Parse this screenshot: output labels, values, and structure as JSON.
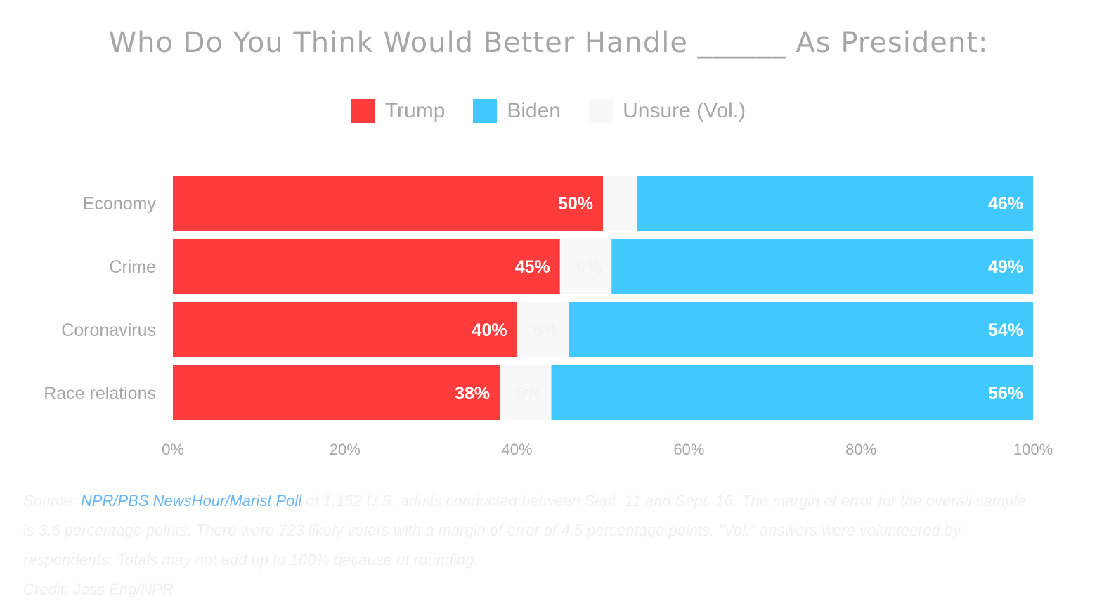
{
  "chart_data": {
    "type": "bar",
    "orientation": "horizontal",
    "stacked": true,
    "title": "Who Do You Think Would Better Handle ______ As President:",
    "categories": [
      "Economy",
      "Crime",
      "Coronavirus",
      "Race relations"
    ],
    "series": [
      {
        "name": "Trump",
        "color": "#ff3b3c",
        "values": [
          50,
          45,
          40,
          38
        ],
        "labels": [
          "50%",
          "45%",
          "40%",
          "38%"
        ]
      },
      {
        "name": "Unsure (Vol.)",
        "color": "#f8f8f8",
        "values": [
          4,
          6,
          6,
          6
        ],
        "labels": [
          "",
          "6%",
          "6%",
          "6%"
        ]
      },
      {
        "name": "Biden",
        "color": "#40c8ff",
        "values": [
          46,
          49,
          54,
          56
        ],
        "labels": [
          "46%",
          "49%",
          "54%",
          "56%"
        ]
      }
    ],
    "legend_order": [
      "Trump",
      "Biden",
      "Unsure (Vol.)"
    ],
    "legend_position": "top",
    "xlim": [
      0,
      100
    ],
    "xticks": [
      0,
      20,
      40,
      60,
      80,
      100
    ],
    "xtick_labels": [
      "0%",
      "20%",
      "40%",
      "60%",
      "80%",
      "100%"
    ],
    "grid": false
  },
  "footer": {
    "source_prefix": "Source: ",
    "source_link": "NPR/PBS NewsHour/Marist Poll",
    "source_text": " of 1,152 U.S. adults conducted between Sept. 11 and Sept. 16. The margin of error for the overall sample is 3.6 percentage points. There were 723 likely voters with a margin of error of 4.5 percentage points. \"Vol.\" answers were volunteered by respondents. Totals may not add up to 100% because of rounding.",
    "credit": "Credit: Jess Eng/NPR"
  }
}
